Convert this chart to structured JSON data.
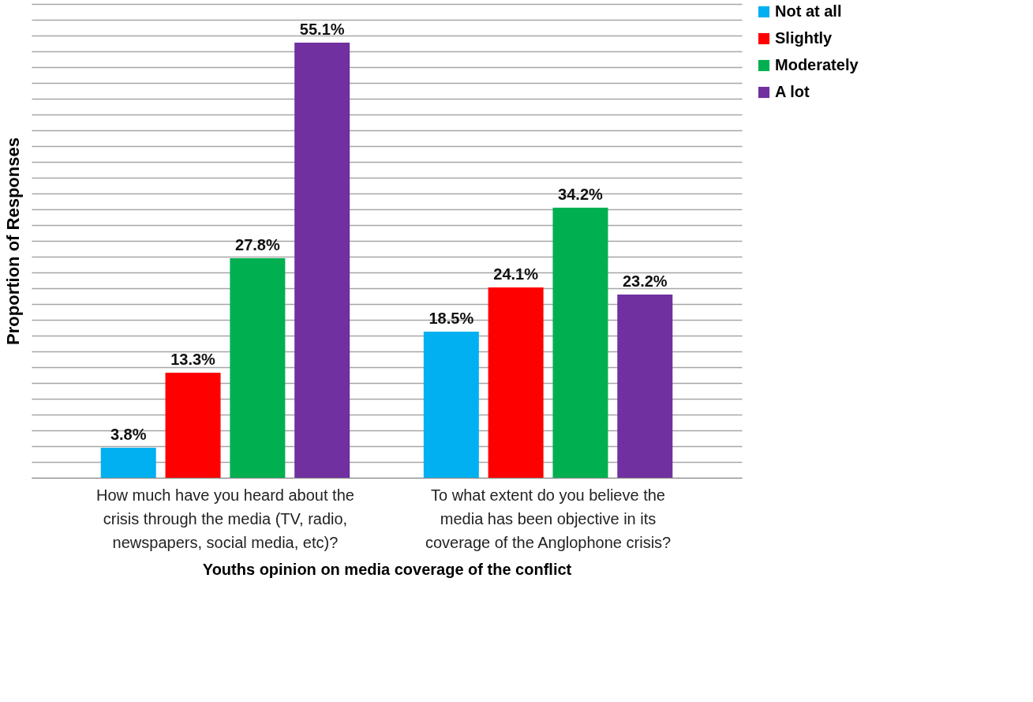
{
  "chart_data": {
    "type": "bar",
    "xlabel": "Youths opinion on media coverage of the conflict",
    "ylabel": "Proportion of Responses",
    "categories": [
      "How much have you heard about the crisis through the media (TV, radio, newspapers, social media, etc)?",
      "To what extent do you believe the media has been objective in its coverage of the Anglophone crisis?"
    ],
    "series": [
      {
        "name": "Not at all",
        "color": "#00b0f0",
        "values": [
          3.8,
          18.5
        ],
        "value_labels": [
          "3.8%",
          "18.5%"
        ]
      },
      {
        "name": "Slightly",
        "color": "#ff0000",
        "values": [
          13.3,
          24.1
        ],
        "value_labels": [
          "13.3%",
          "24.1%"
        ]
      },
      {
        "name": "Moderately",
        "color": "#00b050",
        "values": [
          27.8,
          34.2
        ],
        "value_labels": [
          "27.8%",
          "34.2%"
        ]
      },
      {
        "name": "A lot",
        "color": "#7030a0",
        "values": [
          55.1,
          23.2
        ],
        "value_labels": [
          "55.1%",
          "23.2%"
        ]
      }
    ],
    "ylim": [
      0,
      60
    ],
    "yticks": [
      {
        "value": 0,
        "label": null
      },
      {
        "value": 2,
        "label": null
      },
      {
        "value": 4,
        "label": null
      },
      {
        "value": 6,
        "label": null
      },
      {
        "value": 8,
        "label": null
      },
      {
        "value": 10,
        "label": null
      },
      {
        "value": 12,
        "label": null
      },
      {
        "value": 14,
        "label": null
      },
      {
        "value": 16,
        "label": null
      },
      {
        "value": 18,
        "label": null
      },
      {
        "value": 20,
        "label": null
      },
      {
        "value": 22,
        "label": null
      },
      {
        "value": 24,
        "label": null
      },
      {
        "value": 26,
        "label": null
      },
      {
        "value": 28,
        "label": null
      },
      {
        "value": 30,
        "label": null
      },
      {
        "value": 32,
        "label": null
      },
      {
        "value": 34,
        "label": null
      },
      {
        "value": 36,
        "label": null
      },
      {
        "value": 38,
        "label": null
      },
      {
        "value": 40,
        "label": null
      },
      {
        "value": 42,
        "label": null
      },
      {
        "value": 44,
        "label": null
      },
      {
        "value": 46,
        "label": null
      },
      {
        "value": 48,
        "label": null
      },
      {
        "value": 50,
        "label": null
      },
      {
        "value": 52,
        "label": null
      },
      {
        "value": 54,
        "label": null
      },
      {
        "value": 56,
        "label": null
      },
      {
        "value": 58,
        "label": null
      },
      {
        "value": 60,
        "label": null
      }
    ],
    "tick_labels": "x",
    "grid": "y",
    "legend": "right"
  }
}
